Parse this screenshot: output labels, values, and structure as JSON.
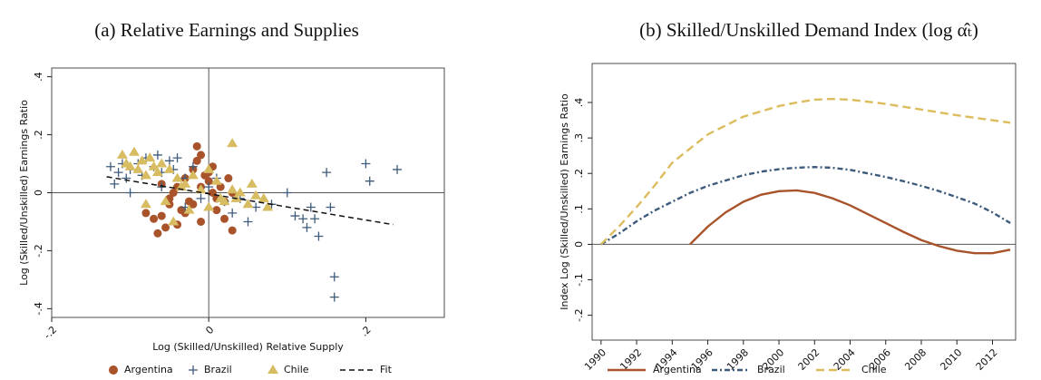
{
  "chart_data": [
    {
      "type": "scatter",
      "title": "(a) Relative Earnings and Supplies",
      "xlabel": "Log (Skilled/Unskilled) Relative Supply",
      "ylabel": "Log (Skilled/Unskilled) Earnings Ratio",
      "xlim": [
        -0.2,
        0.3
      ],
      "ylim": [
        -0.43,
        0.43
      ],
      "xticks": [
        {
          "value": -0.2,
          "label": "-.2"
        },
        0,
        {
          "value": 0.2,
          "label": ".2"
        }
      ],
      "yticks": [
        {
          "value": -0.4,
          "label": "-.4"
        },
        {
          "value": -0.2,
          "label": "-.2"
        },
        0,
        {
          "value": 0.2,
          "label": ".2"
        },
        {
          "value": 0.4,
          "label": ".4"
        }
      ],
      "legend": "bottom",
      "series": [
        {
          "name": "Argentina",
          "color": "#a9532b",
          "marker": "circle",
          "x": [
            -0.08,
            -0.07,
            -0.065,
            -0.06,
            -0.055,
            -0.05,
            -0.045,
            -0.04,
            -0.035,
            -0.03,
            -0.025,
            -0.02,
            -0.015,
            -0.01,
            -0.005,
            0,
            0.005,
            0.01,
            0.015,
            0.02,
            0.025,
            0.03,
            -0.02,
            -0.01,
            0,
            0.01,
            -0.06,
            -0.04,
            -0.03,
            0.03,
            -0.015,
            -0.01,
            0.005,
            0.02,
            -0.05
          ],
          "y": [
            -0.07,
            -0.09,
            -0.14,
            0.03,
            -0.12,
            -0.04,
            0,
            -0.11,
            -0.06,
            0.05,
            -0.03,
            0.08,
            0.16,
            0.13,
            0.06,
            0.07,
            0,
            -0.06,
            0.02,
            -0.09,
            0.05,
            -0.13,
            -0.04,
            0.02,
            0.04,
            -0.02,
            -0.08,
            0.02,
            -0.07,
            0,
            0.11,
            -0.1,
            0.09,
            -0.03,
            -0.02
          ]
        },
        {
          "name": "Brazil",
          "color": "#3e5b7c",
          "marker": "plus",
          "x": [
            -0.125,
            -0.12,
            -0.115,
            -0.11,
            -0.105,
            -0.1,
            -0.09,
            -0.085,
            -0.08,
            -0.07,
            -0.065,
            -0.06,
            -0.05,
            -0.045,
            -0.04,
            -0.03,
            -0.02,
            -0.01,
            0,
            0.01,
            0.02,
            0.03,
            0.05,
            0.06,
            0.08,
            0.1,
            0.11,
            0.12,
            0.125,
            0.13,
            0.135,
            0.14,
            0.15,
            0.155,
            0.16,
            0.16,
            0.2,
            0.205,
            0.24,
            -0.1,
            -0.06,
            -0.03,
            0.04
          ],
          "y": [
            0.09,
            0.03,
            0.07,
            0.1,
            0.05,
            0.08,
            0.1,
            0.06,
            0.12,
            0.09,
            0.13,
            0.07,
            0.11,
            0.08,
            0.12,
            0.05,
            0.09,
            -0.02,
            0.02,
            0.05,
            -0.03,
            -0.07,
            -0.1,
            -0.05,
            -0.04,
            0,
            -0.08,
            -0.09,
            -0.12,
            -0.05,
            -0.09,
            -0.15,
            0.07,
            -0.05,
            -0.29,
            -0.36,
            0.1,
            0.04,
            0.08,
            0,
            0.02,
            -0.05,
            -0.02
          ]
        },
        {
          "name": "Chile",
          "color": "#d8bc62",
          "marker": "triangle",
          "x": [
            -0.11,
            -0.105,
            -0.1,
            -0.095,
            -0.09,
            -0.085,
            -0.08,
            -0.075,
            -0.07,
            -0.065,
            -0.06,
            -0.05,
            -0.045,
            -0.04,
            -0.03,
            -0.02,
            -0.01,
            0,
            0.01,
            0.02,
            0.03,
            0.035,
            0.04,
            0.05,
            0.055,
            0.06,
            0.07,
            0.075,
            -0.08,
            -0.055,
            -0.035,
            -0.025,
            0,
            0.015,
            0.03
          ],
          "y": [
            0.13,
            0.1,
            0.09,
            0.14,
            0.08,
            0.11,
            -0.04,
            0.12,
            0.09,
            0.07,
            0.1,
            0.08,
            -0.1,
            0.05,
            0.03,
            0.06,
            0.01,
            -0.05,
            0.04,
            -0.03,
            0.17,
            -0.02,
            0,
            -0.04,
            0.03,
            -0.01,
            -0.02,
            -0.05,
            0.06,
            -0.03,
            0.02,
            -0.06,
            0.08,
            -0.02,
            0.01
          ]
        },
        {
          "name": "Fit",
          "color": "#111111",
          "marker": "dashed-line",
          "x": [
            -0.13,
            0.235
          ],
          "y": [
            0.055,
            -0.11
          ]
        }
      ]
    },
    {
      "type": "line",
      "title": "(b) Skilled/Unskilled Demand Index (log α̂ₜ)",
      "ylabel": "Index Log (Skilled/Unskilled) Earnings Ratio",
      "xlim": [
        1989.5,
        2013.3
      ],
      "ylim": [
        -0.27,
        0.51
      ],
      "xticks": [
        1990,
        1992,
        1994,
        1996,
        1998,
        2000,
        2002,
        2004,
        2006,
        2008,
        2010,
        2012
      ],
      "yticks": [
        {
          "value": -0.2,
          "label": "-.2"
        },
        {
          "value": -0.1,
          "label": "-.1"
        },
        0,
        {
          "value": 0.1,
          "label": ".1"
        },
        {
          "value": 0.2,
          "label": ".2"
        },
        {
          "value": 0.3,
          "label": ".3"
        },
        {
          "value": 0.4,
          "label": ".4"
        }
      ],
      "legend": "bottom",
      "x": [
        1990,
        1991,
        1992,
        1993,
        1994,
        1995,
        1996,
        1997,
        1998,
        1999,
        2000,
        2001,
        2002,
        2003,
        2004,
        2005,
        2006,
        2007,
        2008,
        2009,
        2010,
        2011,
        2012,
        2013
      ],
      "series": [
        {
          "name": "Argentina",
          "color": "#a9532b",
          "dash": "solid",
          "values": [
            null,
            null,
            null,
            null,
            null,
            0,
            0.05,
            0.09,
            0.12,
            0.14,
            0.15,
            0.152,
            0.145,
            0.13,
            0.11,
            0.085,
            0.06,
            0.035,
            0.012,
            -0.005,
            -0.018,
            -0.025,
            -0.025,
            -0.015
          ]
        },
        {
          "name": "Brazil",
          "color": "#3e5b7c",
          "dash": "dashdot",
          "values": [
            0,
            0.03,
            0.065,
            0.095,
            0.12,
            0.145,
            0.165,
            0.18,
            0.195,
            0.205,
            0.212,
            0.216,
            0.218,
            0.216,
            0.21,
            0.2,
            0.19,
            0.178,
            0.165,
            0.15,
            0.133,
            0.115,
            0.09,
            0.06
          ]
        },
        {
          "name": "Chile",
          "color": "#dcbc5c",
          "dash": "dashed",
          "values": [
            0,
            0.05,
            0.105,
            0.165,
            0.23,
            0.27,
            0.31,
            0.335,
            0.36,
            0.375,
            0.39,
            0.4,
            0.408,
            0.41,
            0.408,
            0.402,
            0.396,
            0.388,
            0.38,
            0.372,
            0.364,
            0.357,
            0.35,
            0.343
          ]
        }
      ]
    }
  ]
}
